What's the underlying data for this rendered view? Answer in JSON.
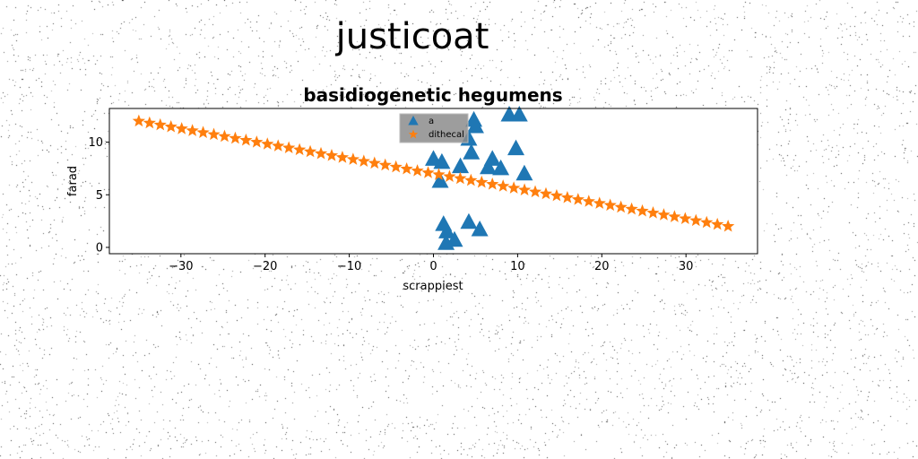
{
  "figure": {
    "suptitle": "justicoat"
  },
  "chart_data": {
    "type": "scatter",
    "title": "basidiogenetic hegumens",
    "xlabel": "scrappiest",
    "ylabel": "farad",
    "xlim": [
      -38.5,
      38.5
    ],
    "ylim": [
      -0.6,
      13.2
    ],
    "xticks": [
      -30,
      -20,
      -10,
      0,
      10,
      20,
      30
    ],
    "yticks": [
      0,
      5,
      10
    ],
    "grid": false,
    "legend_position": "upper-center",
    "series": [
      {
        "name": "a",
        "marker": "triangle",
        "color": "#1f77b4",
        "points": [
          [
            4.8,
            12.1
          ],
          [
            5.0,
            11.5
          ],
          [
            9.0,
            12.6
          ],
          [
            10.2,
            12.6
          ],
          [
            4.2,
            10.3
          ],
          [
            9.8,
            9.4
          ],
          [
            4.5,
            9.0
          ],
          [
            0.0,
            8.4
          ],
          [
            1.0,
            8.1
          ],
          [
            7.0,
            8.4
          ],
          [
            3.2,
            7.7
          ],
          [
            6.5,
            7.6
          ],
          [
            8.0,
            7.5
          ],
          [
            10.8,
            7.0
          ],
          [
            0.8,
            6.3
          ],
          [
            1.2,
            2.2
          ],
          [
            4.2,
            2.4
          ],
          [
            5.5,
            1.7
          ],
          [
            1.6,
            1.5
          ],
          [
            2.5,
            0.7
          ],
          [
            1.5,
            0.4
          ]
        ]
      },
      {
        "name": "dithecal",
        "marker": "star",
        "color": "#ff7f0e",
        "x_range": [
          -35,
          35
        ],
        "y_range": [
          12,
          2
        ],
        "count": 56
      }
    ]
  }
}
